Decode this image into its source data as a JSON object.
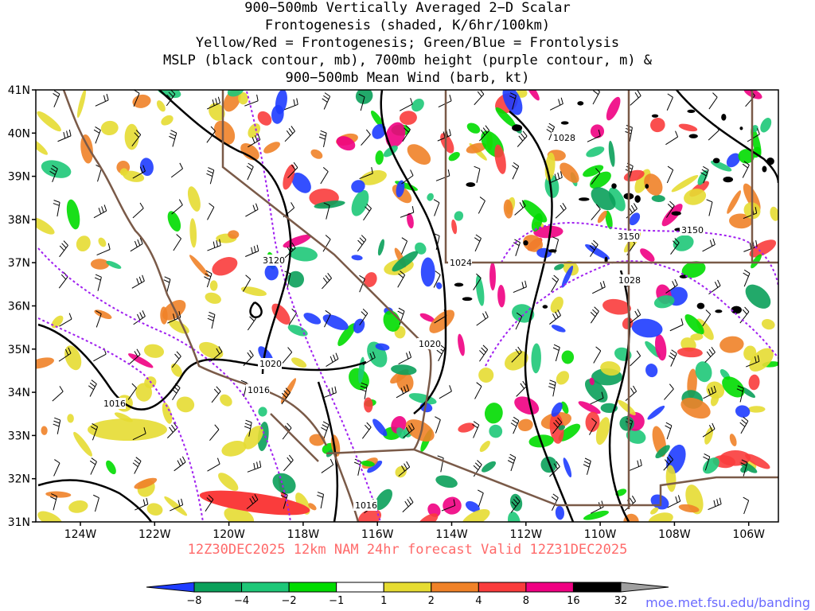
{
  "title": {
    "line1": "900−500mb Vertically Averaged 2−D Scalar",
    "line2": "Frontogenesis (shaded, K/6hr/100km)",
    "line3": "Yellow/Red = Frontogenesis;  Green/Blue = Frontolysis",
    "line4": "MSLP (black contour, mb), 700mb height (purple contour, m) &",
    "line5": "900−500mb Mean Wind (barb, kt)"
  },
  "axes": {
    "lat_labels": [
      "41N",
      "40N",
      "39N",
      "38N",
      "37N",
      "36N",
      "35N",
      "34N",
      "33N",
      "32N",
      "31N"
    ],
    "lon_labels": [
      "124W",
      "122W",
      "120W",
      "118W",
      "116W",
      "114W",
      "112W",
      "110W",
      "108W",
      "106W"
    ]
  },
  "contour_labels": {
    "mslp": [
      "1028",
      "1024",
      "1028",
      "1020",
      "1020",
      "1016",
      "1016",
      "1016"
    ],
    "height": [
      "3120",
      "3150",
      "3150"
    ]
  },
  "valid": "12Z30DEC2025 12km NAM 24hr forecast Valid 12Z31DEC2025",
  "source": "moe.met.fsu.edu/banding",
  "colorbar": {
    "labels": [
      "−8",
      "−4",
      "−2",
      "−1",
      "1",
      "2",
      "4",
      "8",
      "16",
      "32"
    ],
    "colors": [
      "#1e3cff",
      "#0aa05a",
      "#1ec878",
      "#00dc00",
      "#ffffff",
      "#e6dc32",
      "#f08228",
      "#fa3c3c",
      "#f00082",
      "#000000",
      "#a0a0a0"
    ]
  },
  "colors": {
    "coast": "#7a5a48",
    "mslp": "#000000",
    "height": "#a020f0",
    "barb": "#000000"
  }
}
